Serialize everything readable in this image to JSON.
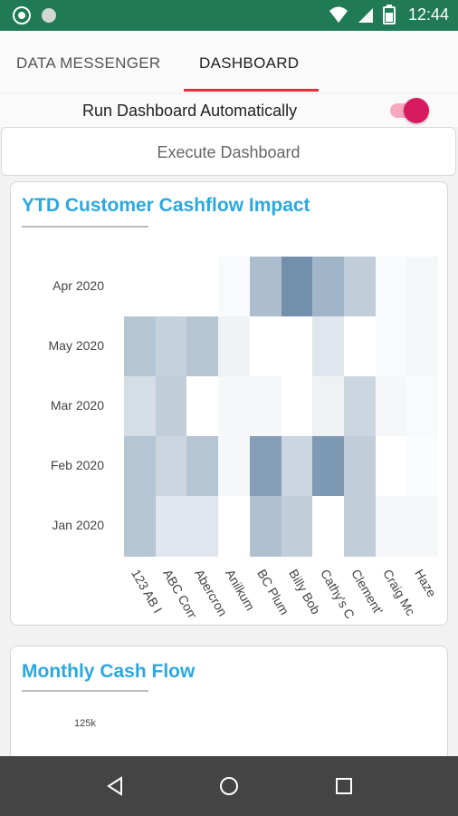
{
  "status_bar": {
    "time": "12:44"
  },
  "tabs": [
    {
      "label": "DATA MESSENGER",
      "active": false
    },
    {
      "label": "DASHBOARD",
      "active": true
    }
  ],
  "toggle": {
    "label": "Run Dashboard Automatically",
    "on": true
  },
  "execute_button": {
    "label": "Execute Dashboard"
  },
  "heatmap_card": {
    "title": "YTD Customer Cashflow Impact"
  },
  "cashflow_card": {
    "title": "Monthly Cash Flow",
    "tick_label": "125k"
  },
  "chart_data": [
    {
      "type": "heatmap",
      "title": "YTD Customer Cashflow Impact",
      "y_categories": [
        "Apr 2020",
        "May 2020",
        "Mar 2020",
        "Feb 2020",
        "Jan 2020"
      ],
      "x_categories": [
        "123 AB I",
        "ABC Com",
        "Abercron",
        "Anilkum",
        "BC Plum",
        "Billy Bob",
        "Cathy's C",
        "Clement'",
        "Craig Mc",
        "Haze"
      ],
      "intensity": [
        [
          null,
          null,
          null,
          0.03,
          0.4,
          0.68,
          0.45,
          0.3,
          0.03,
          0.05
        ],
        [
          0.35,
          0.28,
          0.35,
          0.08,
          0.0,
          0.0,
          0.15,
          0.0,
          0.03,
          0.05
        ],
        [
          0.2,
          0.3,
          0.0,
          0.05,
          0.05,
          0.0,
          0.08,
          0.25,
          0.05,
          0.03
        ],
        [
          0.35,
          0.25,
          0.35,
          0.05,
          0.58,
          0.25,
          0.62,
          0.3,
          0.0,
          0.02
        ],
        [
          0.35,
          0.15,
          0.15,
          0.0,
          0.38,
          0.3,
          0.0,
          0.3,
          0.05,
          0.05
        ]
      ],
      "color": "#2f5a85"
    },
    {
      "type": "bar",
      "title": "Monthly Cash Flow",
      "y_tick_labels": [
        "125k"
      ]
    }
  ]
}
